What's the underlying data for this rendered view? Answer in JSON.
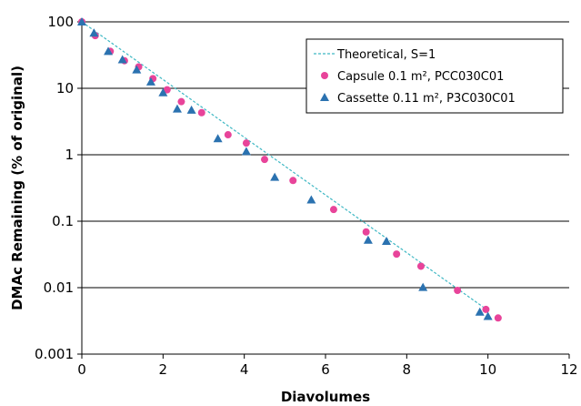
{
  "chart_data": {
    "type": "scatter",
    "xlabel": "Diavolumes",
    "ylabel": "DMAc Remaining (% of original)",
    "xlim": [
      0,
      12
    ],
    "ylim": [
      0.001,
      100
    ],
    "y_scale": "log",
    "x_ticks": [
      "0",
      "2",
      "4",
      "6",
      "8",
      "10",
      "12"
    ],
    "y_ticks": [
      "0.001",
      "0.01",
      "0.1",
      "1",
      "10",
      "100"
    ],
    "grid": "horizontal",
    "legend_position": "top-right",
    "series": [
      {
        "name": "Theoretical, S=1",
        "kind": "line",
        "style": "dashed",
        "color": "#3fb8c4",
        "x": [
          0,
          10
        ],
        "y": [
          100,
          0.00454
        ]
      },
      {
        "name": "Capsule 0.1 m², PCC030C01",
        "kind": "scatter",
        "marker": "circle",
        "color": "#e8449a",
        "x": [
          0.0,
          0.33,
          0.7,
          1.05,
          1.4,
          1.75,
          2.1,
          2.45,
          2.95,
          3.6,
          4.05,
          4.5,
          5.2,
          6.2,
          7.0,
          7.75,
          8.35,
          9.25,
          9.95,
          10.25
        ],
        "y": [
          100,
          62,
          36,
          26,
          21,
          14,
          9.5,
          6.3,
          4.3,
          2.0,
          1.5,
          0.85,
          0.41,
          0.15,
          0.069,
          0.032,
          0.021,
          0.0091,
          0.0047,
          0.0035
        ]
      },
      {
        "name": "Cassette 0.11 m², P3C030C01",
        "kind": "scatter",
        "marker": "triangle",
        "color": "#2b72b0",
        "x": [
          0.0,
          0.3,
          0.65,
          1.0,
          1.35,
          1.7,
          2.0,
          2.35,
          2.7,
          3.35,
          4.05,
          4.75,
          5.65,
          7.05,
          7.5,
          8.4,
          9.8,
          10.0
        ],
        "y": [
          100,
          68,
          36,
          27,
          19,
          12.5,
          8.6,
          4.9,
          4.7,
          1.75,
          1.12,
          0.46,
          0.21,
          0.052,
          0.05,
          0.0101,
          0.0043,
          0.0037
        ]
      }
    ]
  }
}
